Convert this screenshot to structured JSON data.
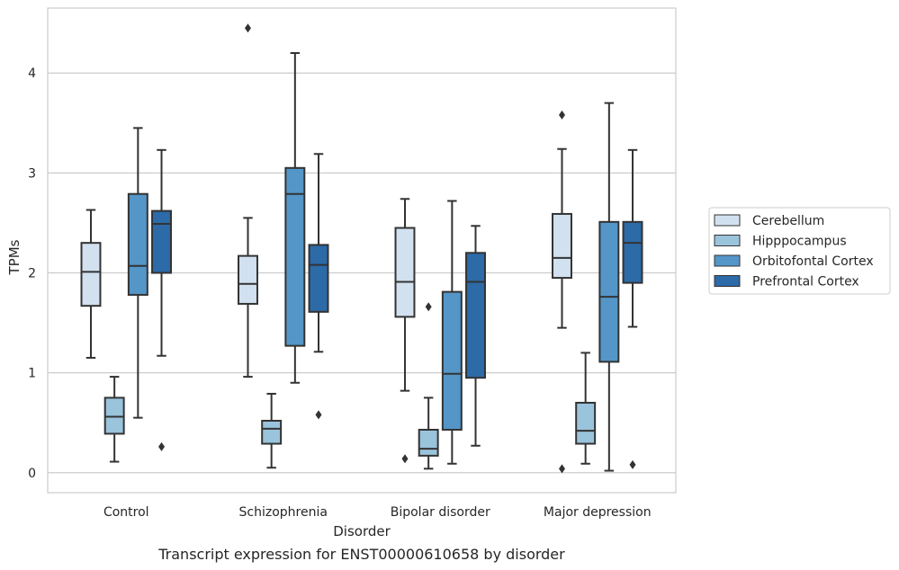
{
  "caption": "Transcript expression for ENST00000610658 by disorder",
  "chart_data": {
    "type": "box",
    "title": "",
    "xlabel": "Disorder",
    "ylabel": "TPMs",
    "ylim": [
      -0.2,
      4.65
    ],
    "yticks": [
      0,
      1,
      2,
      3,
      4
    ],
    "grid": "horizontal",
    "legend_position": "right",
    "categories": [
      "Control",
      "Schizophrenia",
      "Bipolar disorder",
      "Major depression"
    ],
    "series": [
      {
        "name": "Cerebellum",
        "color": "#d2e1f0",
        "boxes": [
          {
            "whisker_low": 1.15,
            "q1": 1.67,
            "median": 2.01,
            "q3": 2.3,
            "whisker_high": 2.63,
            "outliers": []
          },
          {
            "whisker_low": 0.96,
            "q1": 1.69,
            "median": 1.89,
            "q3": 2.17,
            "whisker_high": 2.55,
            "outliers": [
              4.45
            ]
          },
          {
            "whisker_low": 0.82,
            "q1": 1.56,
            "median": 1.91,
            "q3": 2.45,
            "whisker_high": 2.74,
            "outliers": [
              0.14
            ]
          },
          {
            "whisker_low": 1.45,
            "q1": 1.95,
            "median": 2.15,
            "q3": 2.59,
            "whisker_high": 3.24,
            "outliers": [
              3.58,
              0.04
            ]
          }
        ]
      },
      {
        "name": "Hipppocampus",
        "color": "#9ac3dc",
        "boxes": [
          {
            "whisker_low": 0.11,
            "q1": 0.39,
            "median": 0.56,
            "q3": 0.75,
            "whisker_high": 0.96,
            "outliers": []
          },
          {
            "whisker_low": 0.05,
            "q1": 0.29,
            "median": 0.44,
            "q3": 0.52,
            "whisker_high": 0.79,
            "outliers": []
          },
          {
            "whisker_low": 0.04,
            "q1": 0.17,
            "median": 0.24,
            "q3": 0.43,
            "whisker_high": 0.75,
            "outliers": [
              1.66
            ]
          },
          {
            "whisker_low": 0.09,
            "q1": 0.29,
            "median": 0.42,
            "q3": 0.7,
            "whisker_high": 1.2,
            "outliers": []
          }
        ]
      },
      {
        "name": "Orbitofontal Cortex",
        "color": "#5596c8",
        "boxes": [
          {
            "whisker_low": 0.55,
            "q1": 1.78,
            "median": 2.07,
            "q3": 2.79,
            "whisker_high": 3.45,
            "outliers": []
          },
          {
            "whisker_low": 0.9,
            "q1": 1.27,
            "median": 2.79,
            "q3": 3.05,
            "whisker_high": 4.2,
            "outliers": []
          },
          {
            "whisker_low": 0.09,
            "q1": 0.43,
            "median": 0.99,
            "q3": 1.81,
            "whisker_high": 2.72,
            "outliers": []
          },
          {
            "whisker_low": 0.02,
            "q1": 1.11,
            "median": 1.76,
            "q3": 2.51,
            "whisker_high": 3.7,
            "outliers": []
          }
        ]
      },
      {
        "name": "Prefrontal Cortex",
        "color": "#2c6aa8",
        "boxes": [
          {
            "whisker_low": 1.17,
            "q1": 2.0,
            "median": 2.49,
            "q3": 2.62,
            "whisker_high": 3.23,
            "outliers": [
              0.26
            ]
          },
          {
            "whisker_low": 1.21,
            "q1": 1.61,
            "median": 2.08,
            "q3": 2.28,
            "whisker_high": 3.19,
            "outliers": [
              0.58
            ]
          },
          {
            "whisker_low": 0.27,
            "q1": 0.95,
            "median": 1.91,
            "q3": 2.2,
            "whisker_high": 2.47,
            "outliers": []
          },
          {
            "whisker_low": 1.46,
            "q1": 1.9,
            "median": 2.3,
            "q3": 2.51,
            "whisker_high": 3.23,
            "outliers": [
              0.08
            ]
          }
        ]
      }
    ]
  }
}
